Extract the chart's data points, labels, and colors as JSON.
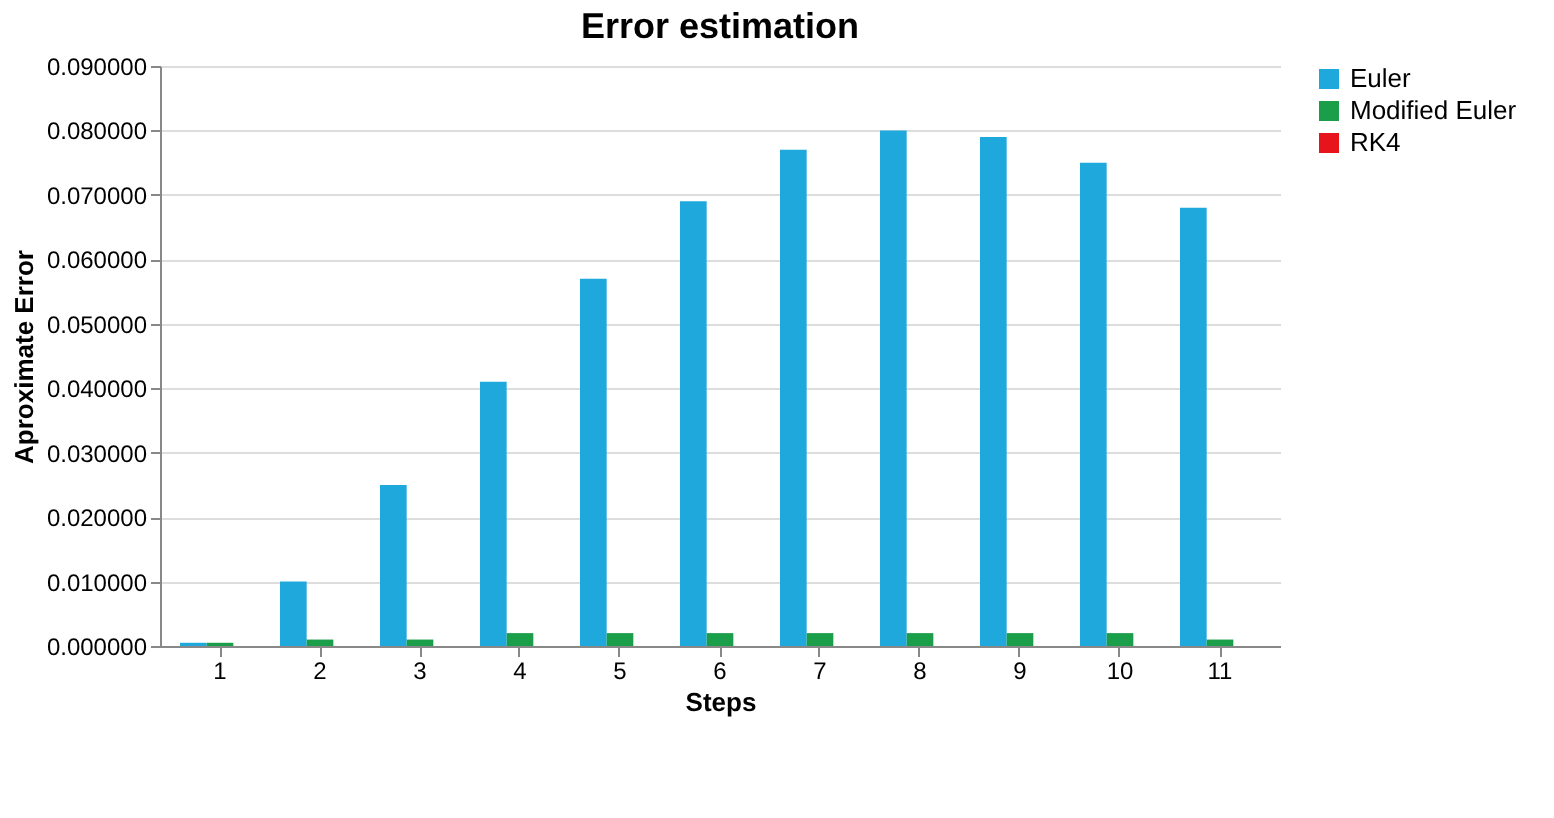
{
  "chart_data": {
    "type": "bar",
    "title": "Error estimation",
    "xlabel": "Steps",
    "ylabel": "Aproximate Error",
    "categories": [
      "1",
      "2",
      "3",
      "4",
      "5",
      "6",
      "7",
      "8",
      "9",
      "10",
      "11"
    ],
    "series": [
      {
        "name": "Euler",
        "color": "#1fa8dc",
        "values": [
          0.0005,
          0.01,
          0.025,
          0.041,
          0.057,
          0.069,
          0.077,
          0.08,
          0.079,
          0.075,
          0.068
        ]
      },
      {
        "name": "Modified Euler",
        "color": "#1a9e4a",
        "values": [
          0.0005,
          0.001,
          0.001,
          0.002,
          0.002,
          0.002,
          0.002,
          0.002,
          0.002,
          0.002,
          0.001
        ]
      },
      {
        "name": "RK4",
        "color": "#e8141c",
        "values": [
          0,
          0,
          0,
          0,
          0,
          0,
          0,
          0,
          0,
          0,
          0
        ]
      }
    ],
    "ylim": [
      0,
      0.09
    ],
    "yticks": [
      {
        "value": 0,
        "label": "0.000000"
      },
      {
        "value": 0.01,
        "label": "0.010000"
      },
      {
        "value": 0.02,
        "label": "0.020000"
      },
      {
        "value": 0.03,
        "label": "0.030000"
      },
      {
        "value": 0.04,
        "label": "0.040000"
      },
      {
        "value": 0.05,
        "label": "0.050000"
      },
      {
        "value": 0.06,
        "label": "0.060000"
      },
      {
        "value": 0.07,
        "label": "0.070000"
      },
      {
        "value": 0.08,
        "label": "0.080000"
      },
      {
        "value": 0.09,
        "label": "0.090000"
      }
    ],
    "grid": "y",
    "legend": "right"
  }
}
